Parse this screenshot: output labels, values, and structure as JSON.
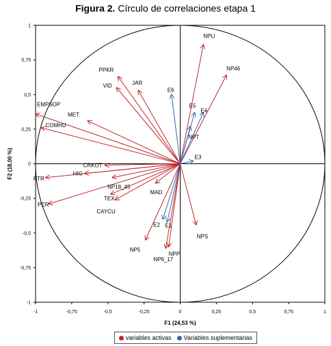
{
  "title": {
    "bold": "Figura 2.",
    "rest": "Círculo de correlaciones etapa 1"
  },
  "colors": {
    "active": "#c0282d",
    "supplementary": "#3a66b0",
    "axis": "#000000"
  },
  "chart_data": {
    "type": "scatter",
    "subtype": "correlation-circle",
    "xlabel": "F1 (24,53 %)",
    "ylabel": "F2 (18,00 %)",
    "xlim": [
      -1,
      1
    ],
    "ylim": [
      -1,
      1
    ],
    "xticks": [
      "-1",
      "-0,75",
      "-0,5",
      "-0,25",
      "0",
      "0,25",
      "0,5",
      "0,75",
      "1"
    ],
    "yticks": [
      "-1",
      "-0,75",
      "-0,5",
      "-0,25",
      "0",
      "0,25",
      "0,5",
      "0,75",
      "1"
    ],
    "legend": [
      "variables activas",
      "Variables suplementarias"
    ],
    "series": [
      {
        "name": "variables activas",
        "points": [
          {
            "label": "NPU",
            "x": 0.16,
            "y": 0.86
          },
          {
            "label": "NP46",
            "x": 0.32,
            "y": 0.64
          },
          {
            "label": "PPKR",
            "x": -0.43,
            "y": 0.63
          },
          {
            "label": "JAR",
            "x": -0.29,
            "y": 0.53
          },
          {
            "label": "VID",
            "x": -0.44,
            "y": 0.55
          },
          {
            "label": "MET",
            "x": -0.64,
            "y": 0.31
          },
          {
            "label": "EMPSOP",
            "x": -1.0,
            "y": 0.36
          },
          {
            "label": "COMHU",
            "x": -0.96,
            "y": 0.26
          },
          {
            "label": "CRKOT",
            "x": -0.52,
            "y": -0.01
          },
          {
            "label": "HIG",
            "x": -0.66,
            "y": -0.07
          },
          {
            "label": "PTR",
            "x": -0.93,
            "y": -0.1
          },
          {
            "label": "NP18_45",
            "x": -0.47,
            "y": -0.1
          },
          {
            "label": "MAD",
            "x": -0.17,
            "y": -0.14
          },
          {
            "label": "TEX",
            "x": -0.48,
            "y": -0.22
          },
          {
            "label": "CAYCU",
            "x": -0.45,
            "y": -0.26
          },
          {
            "label": "PER",
            "x": -0.91,
            "y": -0.29
          },
          {
            "label": "NPS",
            "x": 0.11,
            "y": -0.44
          },
          {
            "label": "NP5",
            "x": -0.24,
            "y": -0.55
          },
          {
            "label": "NPP",
            "x": -0.08,
            "y": -0.6
          },
          {
            "label": "NP6_17",
            "x": -0.1,
            "y": -0.61
          }
        ]
      },
      {
        "name": "Variables suplementarias",
        "points": [
          {
            "label": "E6",
            "x": -0.06,
            "y": 0.5
          },
          {
            "label": "E5",
            "x": 0.1,
            "y": 0.37
          },
          {
            "label": "E4",
            "x": 0.16,
            "y": 0.37
          },
          {
            "label": "NPT",
            "x": 0.07,
            "y": 0.27
          },
          {
            "label": "E3",
            "x": 0.09,
            "y": 0.02
          },
          {
            "label": "E2",
            "x": -0.12,
            "y": -0.4
          },
          {
            "label": "E1",
            "x": -0.09,
            "y": -0.42
          }
        ]
      }
    ]
  }
}
